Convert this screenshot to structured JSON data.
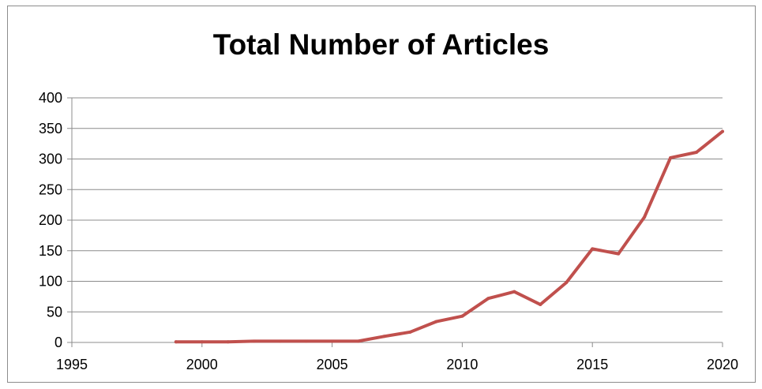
{
  "chart_data": {
    "type": "line",
    "title": "Total Number of Articles",
    "xlabel": "",
    "ylabel": "",
    "xlim": [
      1995,
      2020
    ],
    "ylim": [
      0,
      400
    ],
    "xticks": [
      1995,
      2000,
      2005,
      2010,
      2015,
      2020
    ],
    "yticks": [
      0,
      50,
      100,
      150,
      200,
      250,
      300,
      350,
      400
    ],
    "grid": "horizontal",
    "legend": "none",
    "series": [
      {
        "color": "#c0504d",
        "x": [
          1999,
          2000,
          2001,
          2002,
          2003,
          2004,
          2005,
          2006,
          2007,
          2008,
          2009,
          2010,
          2011,
          2012,
          2013,
          2014,
          2015,
          2016,
          2017,
          2018,
          2019,
          2020
        ],
        "y": [
          1,
          1,
          1,
          2,
          2,
          2,
          2,
          2,
          10,
          17,
          34,
          43,
          72,
          83,
          62,
          98,
          153,
          145,
          205,
          302,
          311,
          345
        ]
      }
    ]
  }
}
